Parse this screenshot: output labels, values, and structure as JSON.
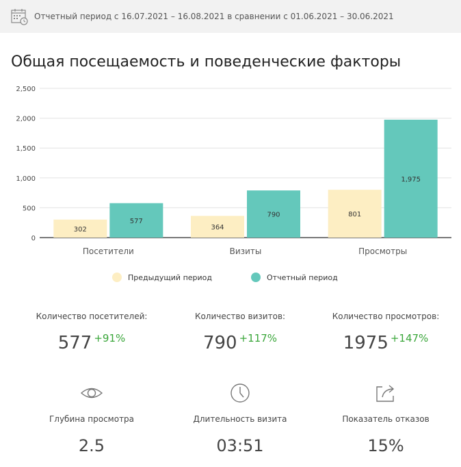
{
  "period": {
    "text": "Отчетный период с 16.07.2021 – 16.08.2021 в сравнении с 01.06.2021 – 30.06.2021",
    "icon": "calendar-icon"
  },
  "section": {
    "title": "Общая посещаемость и поведенческие факторы"
  },
  "colors": {
    "previous": "#fdeec3",
    "current": "#64c8bb",
    "positive": "#3aa63a"
  },
  "chart_data": {
    "type": "bar",
    "categories": [
      "Посетители",
      "Визиты",
      "Просмотры"
    ],
    "series": [
      {
        "name": "Предыдущий период",
        "values": [
          302,
          364,
          801
        ],
        "labels": [
          "302",
          "364",
          "801"
        ]
      },
      {
        "name": "Отчетный период",
        "values": [
          577,
          790,
          1975
        ],
        "labels": [
          "577",
          "790",
          "1,975"
        ]
      }
    ],
    "yticks": [
      "0",
      "500",
      "1,000",
      "1,500",
      "2,000",
      "2,500"
    ],
    "ylim": [
      0,
      2500
    ],
    "grid": true,
    "legend": "bottom"
  },
  "stats": [
    {
      "label": "Количество посетителей:",
      "value": "577",
      "delta": "+91%"
    },
    {
      "label": "Количество визитов:",
      "value": "790",
      "delta": "+117%"
    },
    {
      "label": "Количество просмотров:",
      "value": "1975",
      "delta": "+147%"
    }
  ],
  "metrics": [
    {
      "icon": "eye-icon",
      "label": "Глубина просмотра",
      "value": "2.5"
    },
    {
      "icon": "clock-icon",
      "label": "Длительность визита",
      "value": "03:51"
    },
    {
      "icon": "share-icon",
      "label": "Показатель отказов",
      "value": "15%"
    }
  ]
}
